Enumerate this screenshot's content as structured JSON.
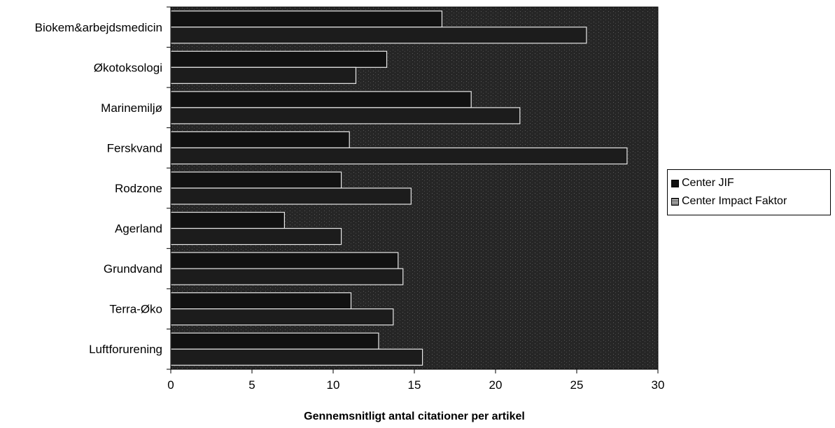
{
  "chart_data": {
    "type": "bar",
    "orientation": "horizontal",
    "categories": [
      "Biokem&arbejdsmedicin",
      "Økotoksologi",
      "Marinemiljø",
      "Ferskvand",
      "Rodzone",
      "Agerland",
      "Grundvand",
      "Terra-Øko",
      "Luftforurening"
    ],
    "series": [
      {
        "name": "Center JIF",
        "values": [
          16.7,
          13.3,
          18.5,
          11.0,
          10.5,
          7.0,
          14.0,
          11.1,
          12.8
        ],
        "color": "#111111"
      },
      {
        "name": "Center Impact Faktor",
        "values": [
          25.6,
          11.4,
          21.5,
          28.1,
          14.8,
          10.5,
          14.3,
          13.7,
          15.5
        ],
        "color": "#1c1c1c"
      }
    ],
    "xlabel": "Gennemsnitligt antal citationer per artikel",
    "ylabel": "",
    "title": "",
    "xlim": [
      0,
      30
    ],
    "xticks": [
      "0",
      "5",
      "10",
      "15",
      "20",
      "25",
      "30"
    ],
    "plot_background": "#262626",
    "grid": false,
    "legend_position": "right"
  }
}
